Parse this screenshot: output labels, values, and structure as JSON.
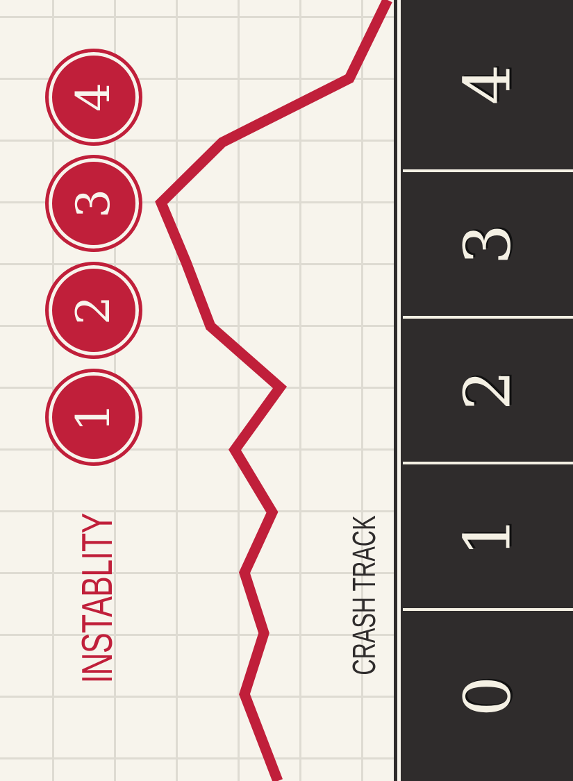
{
  "colors": {
    "background": "#f7f4ec",
    "grid": "#dedbd2",
    "accent": "#c01f3a",
    "track": "#2f2c2c",
    "track_text": "#f4f0e4",
    "label_dark": "#2f2c2c"
  },
  "instability": {
    "label": "INSTABLITY",
    "levels": [
      "1",
      "2",
      "3",
      "4"
    ]
  },
  "crash_track": {
    "label": "CRASH TRACK",
    "cells": [
      "0",
      "1",
      "2",
      "3",
      "4"
    ]
  }
}
